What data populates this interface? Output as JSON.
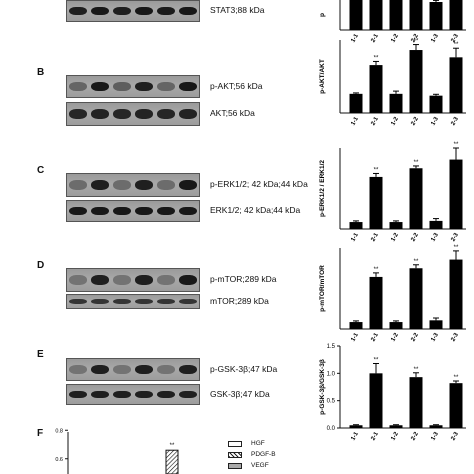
{
  "panels": [
    {
      "letter": "",
      "bands": [
        {
          "label": "STAT3;88 kDa",
          "intensities": [
            0.85,
            0.9,
            0.85,
            0.9,
            0.88,
            0.9
          ]
        }
      ]
    },
    {
      "letter": "B",
      "bands": [
        {
          "label": "p-AKT;56 kDa",
          "intensities": [
            0.35,
            0.9,
            0.4,
            0.85,
            0.35,
            0.9
          ]
        },
        {
          "label": "AKT;56 kDa",
          "intensities": [
            0.8,
            0.82,
            0.8,
            0.82,
            0.8,
            0.82
          ]
        }
      ]
    },
    {
      "letter": "C",
      "bands": [
        {
          "label": "p-ERK1/2; 42 kDa;44 kDa",
          "intensities": [
            0.3,
            0.85,
            0.3,
            0.85,
            0.3,
            0.9
          ]
        },
        {
          "label": "ERK1/2; 42 kDa;44 kDa",
          "intensities": [
            0.9,
            0.9,
            0.9,
            0.9,
            0.9,
            0.9
          ]
        }
      ]
    },
    {
      "letter": "D",
      "bands": [
        {
          "label": "p-mTOR;289 kDa",
          "intensities": [
            0.25,
            0.85,
            0.25,
            0.85,
            0.25,
            0.9
          ]
        },
        {
          "label": "mTOR;289 kDa",
          "intensities": [
            0.7,
            0.7,
            0.7,
            0.7,
            0.7,
            0.7
          ]
        }
      ]
    },
    {
      "letter": "E",
      "bands": [
        {
          "label": "p-GSK-3β;47 kDa",
          "intensities": [
            0.25,
            0.85,
            0.25,
            0.85,
            0.25,
            0.85
          ]
        },
        {
          "label": "GSK-3β;47 kDa",
          "intensities": [
            0.85,
            0.85,
            0.85,
            0.85,
            0.85,
            0.85
          ]
        }
      ]
    },
    {
      "letter": "F",
      "bands": []
    }
  ],
  "chart_data": [
    {
      "type": "bar",
      "ylabel": "p",
      "categories": [
        "1-1",
        "2-1",
        "1-2",
        "2-2",
        "1-3",
        "2-3"
      ],
      "values": [
        0.4,
        0.8,
        0.4,
        0.8,
        0.35,
        0.8
      ],
      "errors": [
        0.02,
        0.05,
        0.03,
        0.05,
        0.02,
        0.05
      ],
      "significance": [
        "",
        "**",
        "",
        "**",
        "",
        "**"
      ],
      "ylim": [
        0,
        1.0
      ],
      "yticks": [],
      "cropped_top": true
    },
    {
      "type": "bar",
      "ylabel": "p-AKT/AKT",
      "categories": [
        "1-1",
        "2-1",
        "1-2",
        "2-2",
        "1-3",
        "2-3"
      ],
      "values": [
        0.42,
        1.05,
        0.42,
        1.38,
        0.38,
        1.22
      ],
      "errors": [
        0.02,
        0.08,
        0.06,
        0.12,
        0.03,
        0.2
      ],
      "significance": [
        "",
        "**",
        "",
        "**",
        "",
        "**"
      ],
      "ylim": [
        0,
        1.6
      ],
      "yticks": []
    },
    {
      "type": "bar",
      "ylabel": "p-ERK1/2 / ERK1/2",
      "categories": [
        "1-1",
        "2-1",
        "1-2",
        "2-2",
        "1-3",
        "2-3"
      ],
      "values": [
        0.12,
        0.9,
        0.12,
        1.05,
        0.14,
        1.2
      ],
      "errors": [
        0.02,
        0.06,
        0.02,
        0.04,
        0.04,
        0.2
      ],
      "significance": [
        "",
        "**",
        "",
        "**",
        "",
        "**"
      ],
      "ylim": [
        0,
        1.4
      ],
      "yticks": []
    },
    {
      "type": "bar",
      "ylabel": "p-mTOR/mTOR",
      "categories": [
        "1-1",
        "2-1",
        "1-2",
        "2-2",
        "1-3",
        "2-3"
      ],
      "values": [
        0.12,
        0.9,
        0.12,
        1.05,
        0.15,
        1.2
      ],
      "errors": [
        0.02,
        0.07,
        0.02,
        0.06,
        0.04,
        0.15
      ],
      "significance": [
        "",
        "**",
        "",
        "**",
        "",
        "**"
      ],
      "ylim": [
        0,
        1.4
      ],
      "yticks": []
    },
    {
      "type": "bar",
      "ylabel": "p-GSK-3β/GSK-3β",
      "categories": [
        "1-1",
        "2-1",
        "1-2",
        "2-2",
        "1-3",
        "2-3"
      ],
      "values": [
        0.05,
        1.0,
        0.05,
        0.93,
        0.05,
        0.82
      ],
      "errors": [
        0.01,
        0.18,
        0.01,
        0.08,
        0.01,
        0.04
      ],
      "significance": [
        "",
        "**",
        "",
        "**",
        "",
        "**"
      ],
      "ylim": [
        0,
        1.5
      ],
      "yticks": [
        "0.0",
        "0.5",
        "1.0",
        "1.5"
      ]
    },
    {
      "type": "bar",
      "ylabel": "",
      "categories": [],
      "yticks": [
        "0.6",
        "0.8"
      ],
      "ylim": [
        0.5,
        0.9
      ],
      "series": [
        {
          "name": "HGF"
        },
        {
          "name": "PDGF-B"
        },
        {
          "name": "VEGF"
        }
      ],
      "visible_values": [
        0.66
      ],
      "significance": [
        "**"
      ],
      "cropped_bottom": true
    }
  ]
}
